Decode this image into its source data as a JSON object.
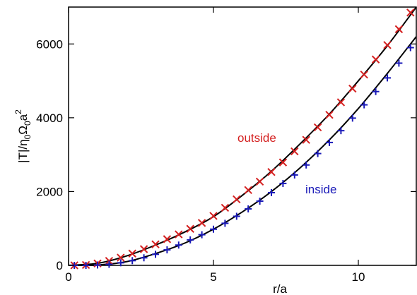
{
  "chart_data": {
    "type": "scatter",
    "xlabel": "r/a",
    "ylabel_parts": [
      "|T|/η",
      "0",
      "Ω",
      "0",
      "a",
      "2"
    ],
    "xlim": [
      0,
      12
    ],
    "ylim": [
      0,
      7000
    ],
    "xticks": [
      0,
      5,
      10
    ],
    "yticks": [
      0,
      2000,
      4000,
      6000
    ],
    "grid": false,
    "series": [
      {
        "name": "outside",
        "marker": "x",
        "color": "#d42020",
        "x": [
          0.2,
          0.6,
          1.0,
          1.4,
          1.8,
          2.2,
          2.6,
          3.0,
          3.4,
          3.8,
          4.2,
          4.6,
          5.0,
          5.4,
          5.8,
          6.2,
          6.6,
          7.0,
          7.4,
          7.8,
          8.2,
          8.6,
          9.0,
          9.4,
          9.8,
          10.2,
          10.6,
          11.0,
          11.4,
          11.8
        ],
        "y": [
          2,
          10,
          51,
          120,
          210,
          320,
          440,
          570,
          710,
          840,
          990,
          1150,
          1340,
          1560,
          1790,
          2040,
          2270,
          2530,
          2790,
          3090,
          3400,
          3740,
          4080,
          4420,
          4790,
          5170,
          5580,
          5970,
          6400,
          6850
        ]
      },
      {
        "name": "inside",
        "marker": "+",
        "color": "#1a1ab8",
        "x": [
          0.2,
          0.6,
          1.0,
          1.4,
          1.8,
          2.2,
          2.6,
          3.0,
          3.4,
          3.8,
          4.2,
          4.6,
          5.0,
          5.4,
          5.8,
          6.2,
          6.6,
          7.0,
          7.4,
          7.8,
          8.2,
          8.6,
          9.0,
          9.4,
          9.8,
          10.2,
          10.6,
          11.0,
          11.4,
          11.8
        ],
        "y": [
          0,
          0,
          10,
          28,
          70,
          128,
          205,
          300,
          420,
          550,
          690,
          830,
          980,
          1140,
          1330,
          1530,
          1740,
          1970,
          2220,
          2450,
          2720,
          3030,
          3330,
          3650,
          3990,
          4350,
          4710,
          5080,
          5480,
          5900
        ]
      }
    ],
    "fit_curves": [
      {
        "color": "#000000",
        "x": [
          0,
          1,
          2,
          3,
          4,
          5,
          6,
          7,
          8,
          9,
          10,
          11,
          12
        ],
        "y": [
          0,
          55,
          255,
          550,
          900,
          1320,
          1900,
          2550,
          3300,
          4100,
          5000,
          5950,
          7000
        ]
      },
      {
        "color": "#000000",
        "x": [
          0,
          1,
          2,
          3,
          4,
          5,
          6,
          7,
          8,
          9,
          10,
          11,
          12
        ],
        "y": [
          0,
          10,
          100,
          320,
          600,
          980,
          1450,
          2000,
          2650,
          3400,
          4250,
          5200,
          6200
        ]
      }
    ],
    "annotations": [
      {
        "text": "outside",
        "color": "#d42020"
      },
      {
        "text": "inside",
        "color": "#1a1ab8"
      }
    ]
  }
}
